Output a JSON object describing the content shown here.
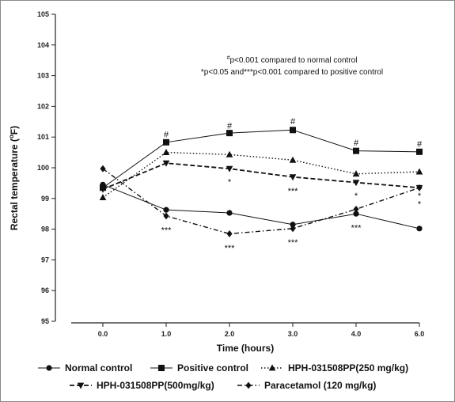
{
  "chart_data": {
    "type": "line",
    "title": "",
    "xlabel": "Time (hours)",
    "ylabel": "Rectal temperature (°F)",
    "ylabel_main": "Rectal temperature (",
    "ylabel_sup": "o",
    "ylabel_unit": "F)",
    "x": [
      "0.0",
      "1.0",
      "2.0",
      "3.0",
      "4.0",
      "6.0"
    ],
    "ylim": [
      95,
      105
    ],
    "yticks": [
      95,
      96,
      97,
      98,
      99,
      100,
      101,
      102,
      103,
      104,
      105
    ],
    "grid": false,
    "legend_position": "bottom",
    "series": [
      {
        "name": "Normal control",
        "marker": "circle",
        "dash": "solid",
        "values": [
          99.45,
          98.63,
          98.53,
          98.15,
          98.5,
          98.02
        ]
      },
      {
        "name": "Positive control",
        "marker": "square",
        "dash": "solid",
        "values": [
          99.35,
          100.83,
          101.13,
          101.23,
          100.55,
          100.52
        ]
      },
      {
        "name": "HPH-031508PP(250 mg/kg)",
        "marker": "triangle-up",
        "dash": "dotted",
        "values": [
          99.03,
          100.5,
          100.43,
          100.25,
          99.8,
          99.87
        ]
      },
      {
        "name": "HPH-031508PP(500mg/kg)",
        "marker": "triangle-down",
        "dash": "dashed",
        "values": [
          99.3,
          100.15,
          99.97,
          99.7,
          99.52,
          99.35
        ]
      },
      {
        "name": "Paracetamol (120 mg/kg)",
        "marker": "diamond",
        "dash": "dashdot",
        "values": [
          99.97,
          98.43,
          97.85,
          98.02,
          98.65,
          99.35
        ]
      }
    ],
    "annotations": {
      "note_line1_sup": "#",
      "note_line1": "p<0.001 compared to  normal control",
      "note_line2": "*p<0.05 and***p<0.001 compared to positive control",
      "significance": [
        {
          "x": "1.0",
          "y": 101.1,
          "text": "#"
        },
        {
          "x": "2.0",
          "y": 101.38,
          "text": "#"
        },
        {
          "x": "3.0",
          "y": 101.52,
          "text": "#"
        },
        {
          "x": "4.0",
          "y": 100.83,
          "text": "#"
        },
        {
          "x": "6.0",
          "y": 100.79,
          "text": "#"
        },
        {
          "x": "2.0",
          "y": 99.55,
          "text": "*"
        },
        {
          "x": "3.0",
          "y": 99.25,
          "text": "***"
        },
        {
          "x": "4.0",
          "y": 99.1,
          "text": "*"
        },
        {
          "x": "6.0",
          "y": 99.1,
          "text": "*"
        },
        {
          "x": "6.0",
          "y": 98.83,
          "text": "*"
        },
        {
          "x": "1.0",
          "y": 97.98,
          "text": "***"
        },
        {
          "x": "2.0",
          "y": 97.4,
          "text": "***"
        },
        {
          "x": "3.0",
          "y": 97.58,
          "text": "***"
        },
        {
          "x": "4.0",
          "y": 98.05,
          "text": "***"
        }
      ]
    }
  }
}
